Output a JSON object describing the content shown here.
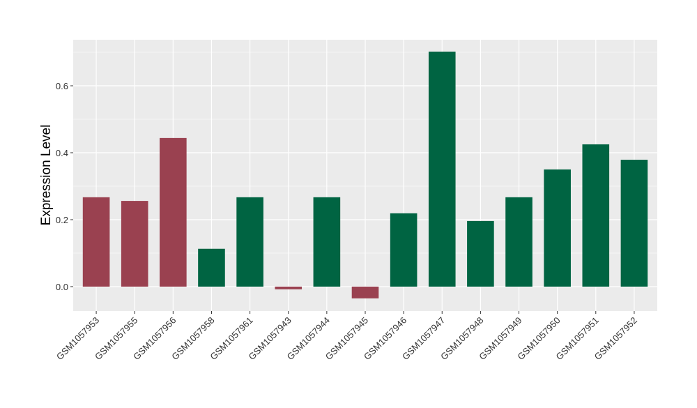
{
  "chart_data": {
    "type": "bar",
    "title": "",
    "xlabel": "",
    "ylabel": "Expression Level",
    "ylim": [
      -0.073,
      0.7375
    ],
    "yticks": [
      0.0,
      0.2,
      0.4,
      0.6
    ],
    "ytick_labels": [
      "0.0",
      "0.2",
      "0.4",
      "0.6"
    ],
    "grid": true,
    "categories": [
      "GSM1057953",
      "GSM1057955",
      "GSM1057956",
      "GSM1057958",
      "GSM1057961",
      "GSM1057943",
      "GSM1057944",
      "GSM1057945",
      "GSM1057946",
      "GSM1057947",
      "GSM1057948",
      "GSM1057949",
      "GSM1057950",
      "GSM1057951",
      "GSM1057952"
    ],
    "values": [
      0.267,
      0.256,
      0.444,
      0.113,
      0.267,
      -0.008,
      0.267,
      -0.035,
      0.219,
      0.702,
      0.196,
      0.267,
      0.35,
      0.425,
      0.379
    ],
    "groups": [
      "a",
      "a",
      "a",
      "b",
      "b",
      "a",
      "b",
      "a",
      "b",
      "b",
      "b",
      "b",
      "b",
      "b",
      "b"
    ],
    "colors": {
      "a": "#9a4150",
      "b": "#006442"
    }
  }
}
